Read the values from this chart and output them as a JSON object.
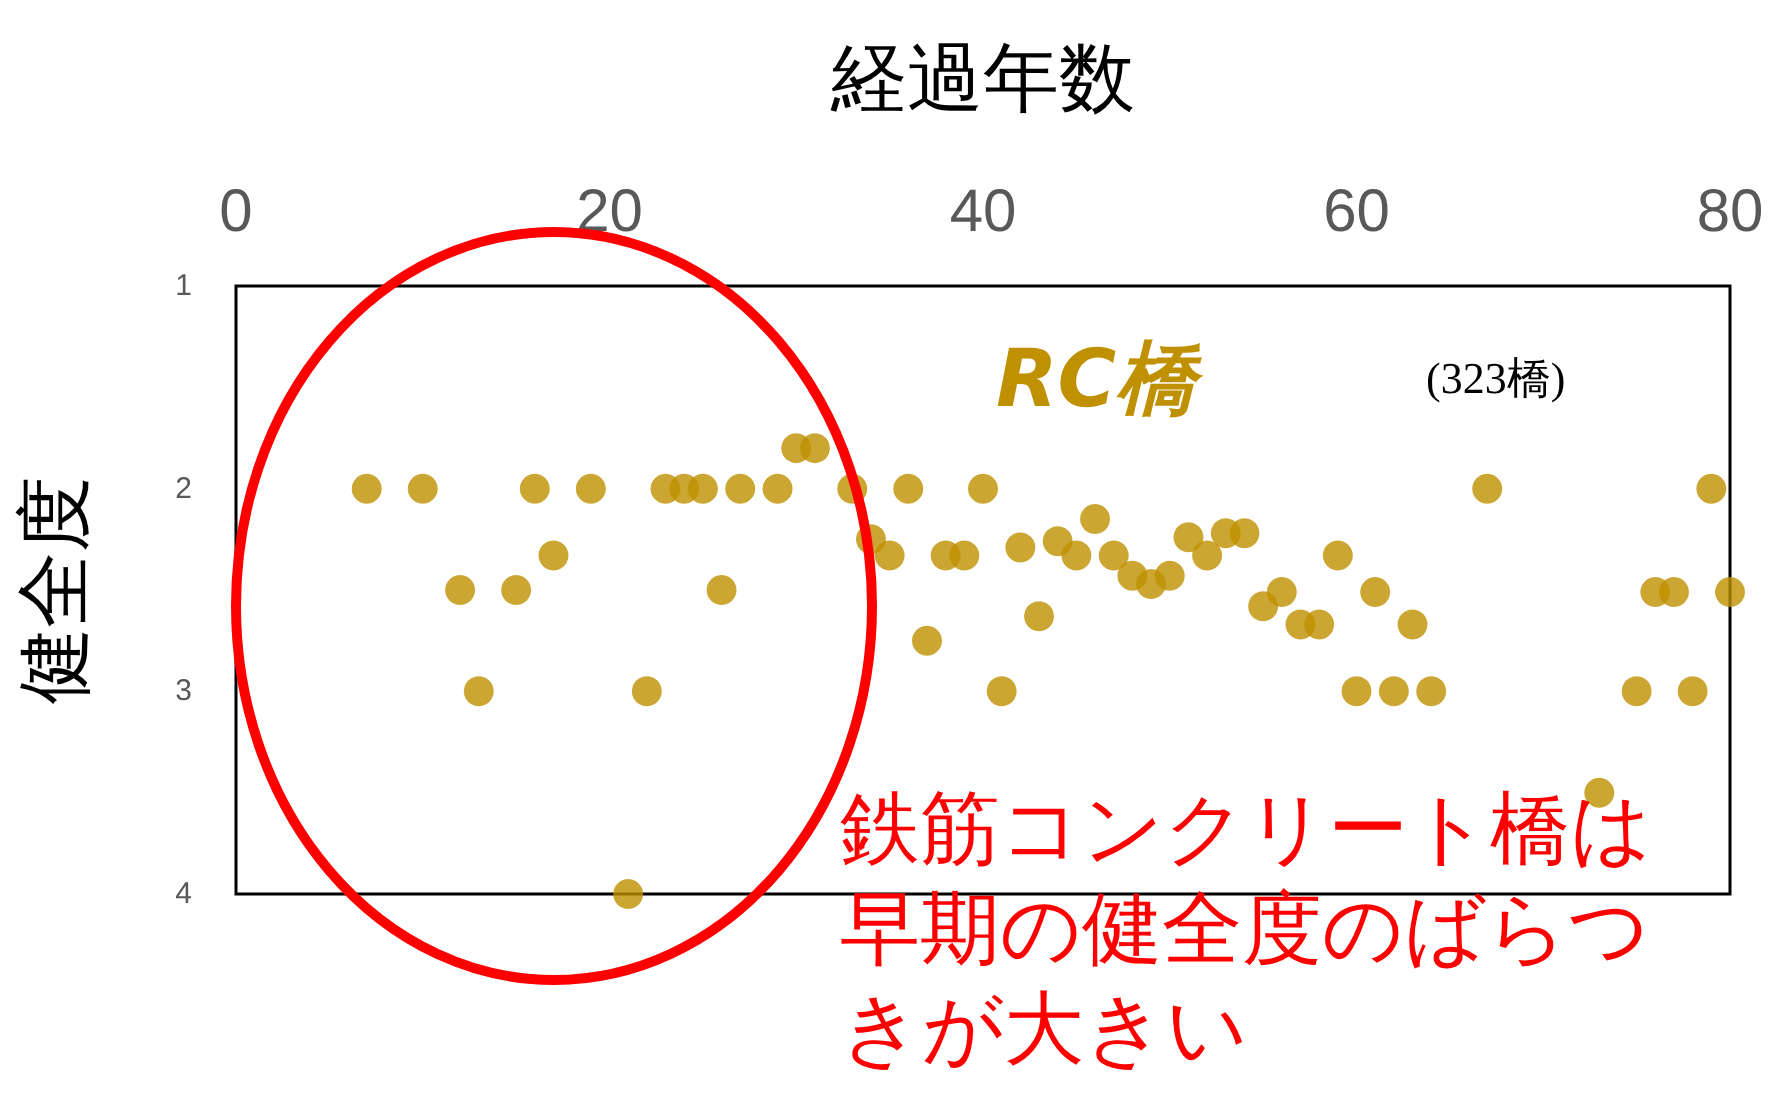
{
  "chart_data": {
    "type": "scatter",
    "xlabel": "経過年数",
    "ylabel": "健全度",
    "annotations": [
      "RC橋",
      "(323橋)",
      "鉄筋コンクリート橋は早期の健全度のばらつきが大きい"
    ],
    "xlim": [
      0,
      80
    ],
    "xticks": [
      0,
      20,
      40,
      60,
      80
    ],
    "ylim": [
      4,
      1
    ],
    "yticks": [
      1,
      2,
      3,
      4
    ],
    "grid": false,
    "marker": "circle",
    "series": [
      {
        "color": "#bf9000",
        "x": [
          7,
          10,
          12,
          13,
          15,
          16,
          17,
          19,
          21,
          22,
          23,
          24,
          25,
          26,
          27,
          29,
          30,
          31,
          33,
          34,
          35,
          36,
          37,
          38,
          39,
          40,
          41,
          42,
          43,
          44,
          45,
          46,
          47,
          48,
          49,
          50,
          51,
          52,
          53,
          54,
          55,
          56,
          57,
          58,
          59,
          60,
          61,
          62,
          63,
          64,
          67,
          73,
          75,
          76,
          77,
          78,
          79,
          80
        ],
        "values": [
          2,
          2,
          2.5,
          3,
          2.5,
          2,
          2.33,
          2,
          4,
          3,
          2,
          2,
          2,
          2.5,
          2,
          2,
          1.8,
          1.8,
          2,
          2.25,
          2.33,
          2,
          2.75,
          2.33,
          2.33,
          2,
          3,
          2.29,
          2.63,
          2.26,
          2.33,
          2.15,
          2.33,
          2.43,
          2.47,
          2.43,
          2.24,
          2.33,
          2.22,
          2.22,
          2.58,
          2.51,
          2.67,
          2.67,
          2.33,
          3,
          2.51,
          3,
          2.67,
          3,
          2,
          3.5,
          3,
          2.51,
          2.51,
          3,
          2,
          2.51
        ]
      }
    ]
  }
}
